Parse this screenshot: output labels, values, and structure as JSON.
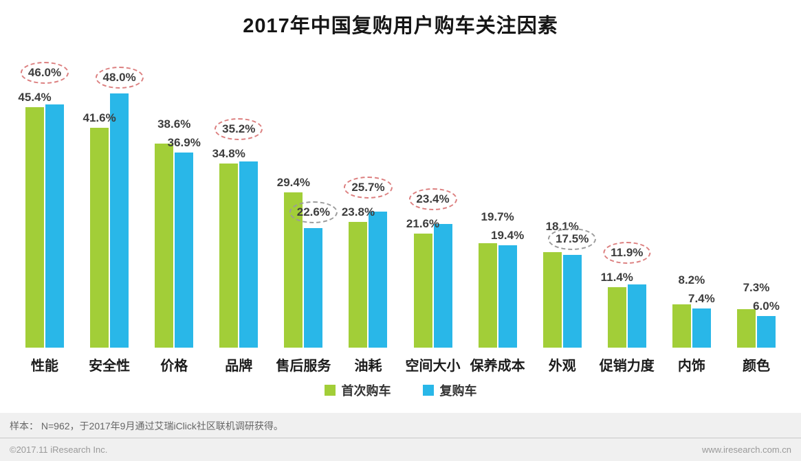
{
  "chart_data": {
    "type": "bar",
    "title": "2017年中国复购用户购车关注因素",
    "categories": [
      "性能",
      "安全性",
      "价格",
      "品牌",
      "售后服务",
      "油耗",
      "空间大小",
      "保养成本",
      "外观",
      "促销力度",
      "内饰",
      "颜色"
    ],
    "series": [
      {
        "name": "首次购车",
        "color": "#a2ce38",
        "values": [
          45.4,
          41.6,
          38.6,
          34.8,
          29.4,
          23.8,
          21.6,
          19.7,
          18.1,
          11.4,
          8.2,
          7.3
        ]
      },
      {
        "name": "复购车",
        "color": "#29b7e8",
        "values": [
          46.0,
          48.0,
          36.9,
          35.2,
          22.6,
          25.7,
          23.4,
          19.4,
          17.5,
          11.9,
          7.4,
          6.0
        ]
      }
    ],
    "unit": "%",
    "ylim": [
      0,
      50
    ],
    "grid": false,
    "legend_position": "bottom",
    "xlabel": "",
    "ylabel": "",
    "highlight_circles": {
      "series": "复购车",
      "styles": [
        "red",
        "red",
        null,
        "red",
        "gray",
        "red",
        "red",
        null,
        "gray",
        "red",
        null,
        null
      ]
    },
    "circle_colors": {
      "red": "#dc7f7f",
      "gray": "#9b9b9b"
    }
  },
  "footer": {
    "note": "样本： N=962，于2017年9月通过艾瑞iClick社区联机调研获得。",
    "copyright": "©2017.11 iResearch Inc.",
    "website": "www.iresearch.com.cn"
  }
}
